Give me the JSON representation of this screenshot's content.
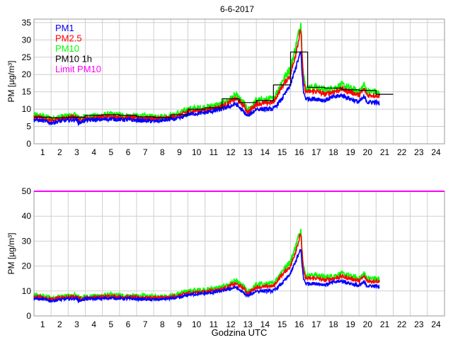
{
  "chart_data": [
    {
      "type": "line",
      "title": "6-6-2017",
      "xlabel": "",
      "ylabel": "PM [µg/m³]",
      "xlim": [
        0,
        24
      ],
      "ylim": [
        0,
        36
      ],
      "xticks": [
        1,
        2,
        3,
        4,
        5,
        6,
        7,
        8,
        9,
        10,
        11,
        12,
        13,
        14,
        15,
        16,
        17,
        18,
        19,
        20,
        21,
        22,
        23,
        24
      ],
      "yticks": [
        0,
        5,
        10,
        15,
        20,
        25,
        30,
        35
      ],
      "grid": true,
      "legend_position": "top-left",
      "legend": [
        {
          "name": "PM1",
          "color": "#0000ff"
        },
        {
          "name": "PM2.5",
          "color": "#ff0000"
        },
        {
          "name": "PM10",
          "color": "#00ff00"
        },
        {
          "name": "PM10 1h",
          "color": "#000000"
        },
        {
          "name": "Limit PM10",
          "color": "#ff00ff"
        }
      ],
      "x": [
        0,
        0.5,
        1,
        1.5,
        2,
        2.5,
        2.6,
        3,
        4,
        4.5,
        5,
        6,
        7,
        8,
        8.5,
        9,
        10,
        11,
        11.8,
        12.3,
        12.5,
        13,
        14,
        14.5,
        15,
        15.3,
        15.6,
        15.75,
        15.9,
        16.5,
        17,
        17.5,
        18,
        18.5,
        19,
        19.3,
        19.5,
        20,
        20.2
      ],
      "series": [
        {
          "name": "PM10",
          "color": "#00ff00",
          "values": [
            8.3,
            8,
            7.3,
            7.7,
            8,
            8.3,
            7.5,
            7.8,
            8.2,
            8.5,
            8.2,
            8,
            7.8,
            8,
            8.8,
            10,
            10.5,
            11.5,
            14,
            11.5,
            9.5,
            12.5,
            13,
            18,
            22,
            28,
            35,
            20,
            16,
            16.5,
            15.5,
            16,
            17,
            16,
            15,
            17,
            15,
            15,
            14.5
          ]
        },
        {
          "name": "PM2.5",
          "color": "#ff0000",
          "values": [
            7.8,
            7.5,
            6.8,
            7.2,
            7.5,
            7.8,
            7,
            7.3,
            7.7,
            8,
            7.7,
            7.5,
            7.3,
            7.5,
            8.2,
            9.3,
            9.8,
            10.8,
            13,
            10.8,
            9,
            11.5,
            12,
            16.5,
            20,
            26,
            33,
            18,
            15,
            15.2,
            14.3,
            15,
            15.8,
            15,
            14,
            15.8,
            14,
            14,
            13.8
          ]
        },
        {
          "name": "PM1",
          "color": "#0000ff",
          "values": [
            7,
            6.7,
            6,
            6.5,
            6.8,
            7,
            6,
            6.8,
            7,
            7.2,
            7,
            6.8,
            6.5,
            7,
            7.3,
            8.5,
            9,
            10,
            11.5,
            9,
            8,
            10,
            10,
            13,
            17,
            22,
            26.5,
            15,
            13,
            13,
            12.5,
            13.5,
            14,
            13,
            12,
            13.5,
            12,
            12,
            11.5
          ]
        }
      ],
      "hourly_pm10": {
        "name": "PM10 1h",
        "color": "#000000",
        "hours": [
          0,
          1,
          2,
          3,
          4,
          5,
          6,
          7,
          8,
          9,
          10,
          11,
          12,
          13,
          14,
          15,
          16,
          17,
          18,
          19,
          20
        ],
        "values": [
          7.7,
          7.5,
          7.7,
          8.2,
          8.4,
          8.2,
          7.8,
          7.6,
          8.4,
          10.0,
          10.4,
          13.0,
          11.9,
          12.5,
          17.0,
          26.5,
          16.3,
          16.1,
          15.6,
          15.4,
          14.3
        ]
      }
    },
    {
      "type": "line",
      "title": "",
      "xlabel": "Godzina UTC",
      "ylabel": "PM [µg/m³]",
      "xlim": [
        0,
        24
      ],
      "ylim": [
        0,
        50
      ],
      "xticks": [
        1,
        2,
        3,
        4,
        5,
        6,
        7,
        8,
        9,
        10,
        11,
        12,
        13,
        14,
        15,
        16,
        17,
        18,
        19,
        20,
        21,
        22,
        23,
        24
      ],
      "yticks": [
        0,
        10,
        20,
        30,
        40,
        50
      ],
      "grid": true,
      "limit_line": {
        "name": "Limit PM10",
        "value": 50,
        "color": "#ff00ff"
      },
      "uses_series_of_chart": 0
    }
  ]
}
